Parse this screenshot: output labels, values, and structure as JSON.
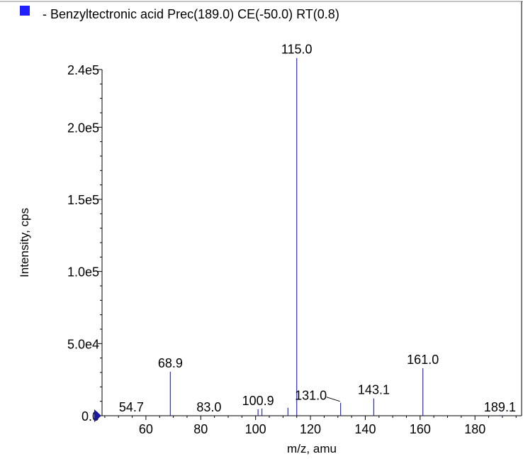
{
  "legend": {
    "text": "- Benzyltectronic acid Prec(189.0) CE(-50.0) RT(0.8)",
    "swatch_color": "#1f1fff"
  },
  "chart_data": {
    "type": "bar",
    "title": "",
    "xlabel": "m/z, amu",
    "ylabel": "Intensity, cps",
    "xlim": [
      44,
      197
    ],
    "ylim": [
      0,
      245000
    ],
    "x_ticks": [
      60,
      80,
      100,
      120,
      140,
      160,
      180
    ],
    "y_ticks": [
      {
        "value": 0,
        "label": "0.0"
      },
      {
        "value": 50000,
        "label": "5.0e4"
      },
      {
        "value": 100000,
        "label": "1.0e5"
      },
      {
        "value": 150000,
        "label": "1.5e5"
      },
      {
        "value": 200000,
        "label": "2.0e5"
      },
      {
        "value": 240000,
        "label": "2.4e5"
      }
    ],
    "line_color": "#2a2ad8",
    "peaks": [
      {
        "mz": 54.7,
        "intensity": 300,
        "label": "54.7"
      },
      {
        "mz": 68.9,
        "intensity": 30500,
        "label": "68.9"
      },
      {
        "mz": 83.0,
        "intensity": 300,
        "label": "83.0"
      },
      {
        "mz": 100.9,
        "intensity": 4500,
        "label": "100.9"
      },
      {
        "mz": 102.3,
        "intensity": 5000,
        "label": ""
      },
      {
        "mz": 111.8,
        "intensity": 5500,
        "label": ""
      },
      {
        "mz": 115.0,
        "intensity": 248000,
        "label": "115.0"
      },
      {
        "mz": 131.0,
        "intensity": 9000,
        "label": "131.0"
      },
      {
        "mz": 143.1,
        "intensity": 12000,
        "label": "143.1"
      },
      {
        "mz": 161.0,
        "intensity": 33000,
        "label": "161.0"
      },
      {
        "mz": 189.1,
        "intensity": 400,
        "label": "189.1"
      }
    ]
  }
}
